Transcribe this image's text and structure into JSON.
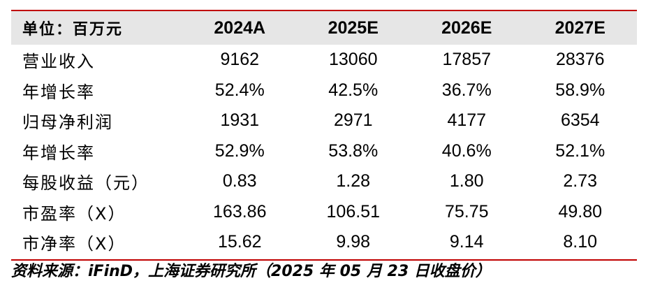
{
  "table": {
    "header": {
      "label": "单位：百万元",
      "columns": [
        "2024A",
        "2025E",
        "2026E",
        "2027E"
      ]
    },
    "rows": [
      {
        "label": "营业收入",
        "values": [
          "9162",
          "13060",
          "17857",
          "28376"
        ]
      },
      {
        "label": "年增长率",
        "values": [
          "52.4%",
          "42.5%",
          "36.7%",
          "58.9%"
        ]
      },
      {
        "label": "归母净利润",
        "values": [
          "1931",
          "2971",
          "4177",
          "6354"
        ]
      },
      {
        "label": "年增长率",
        "values": [
          "52.9%",
          "53.8%",
          "40.6%",
          "52.1%"
        ]
      },
      {
        "label": "每股收益（元）",
        "values": [
          "0.83",
          "1.28",
          "1.80",
          "2.73"
        ]
      },
      {
        "label": "市盈率（X）",
        "values": [
          "163.86",
          "106.51",
          "75.75",
          "49.80"
        ]
      },
      {
        "label": "市净率（X）",
        "values": [
          "15.62",
          "9.98",
          "9.14",
          "8.10"
        ]
      }
    ]
  },
  "source": "资料来源：iFinD，上海证券研究所（2025 年 05 月 23 日收盘价）",
  "colors": {
    "rule": "#c00000",
    "header_bg": "#e6e6e6"
  }
}
